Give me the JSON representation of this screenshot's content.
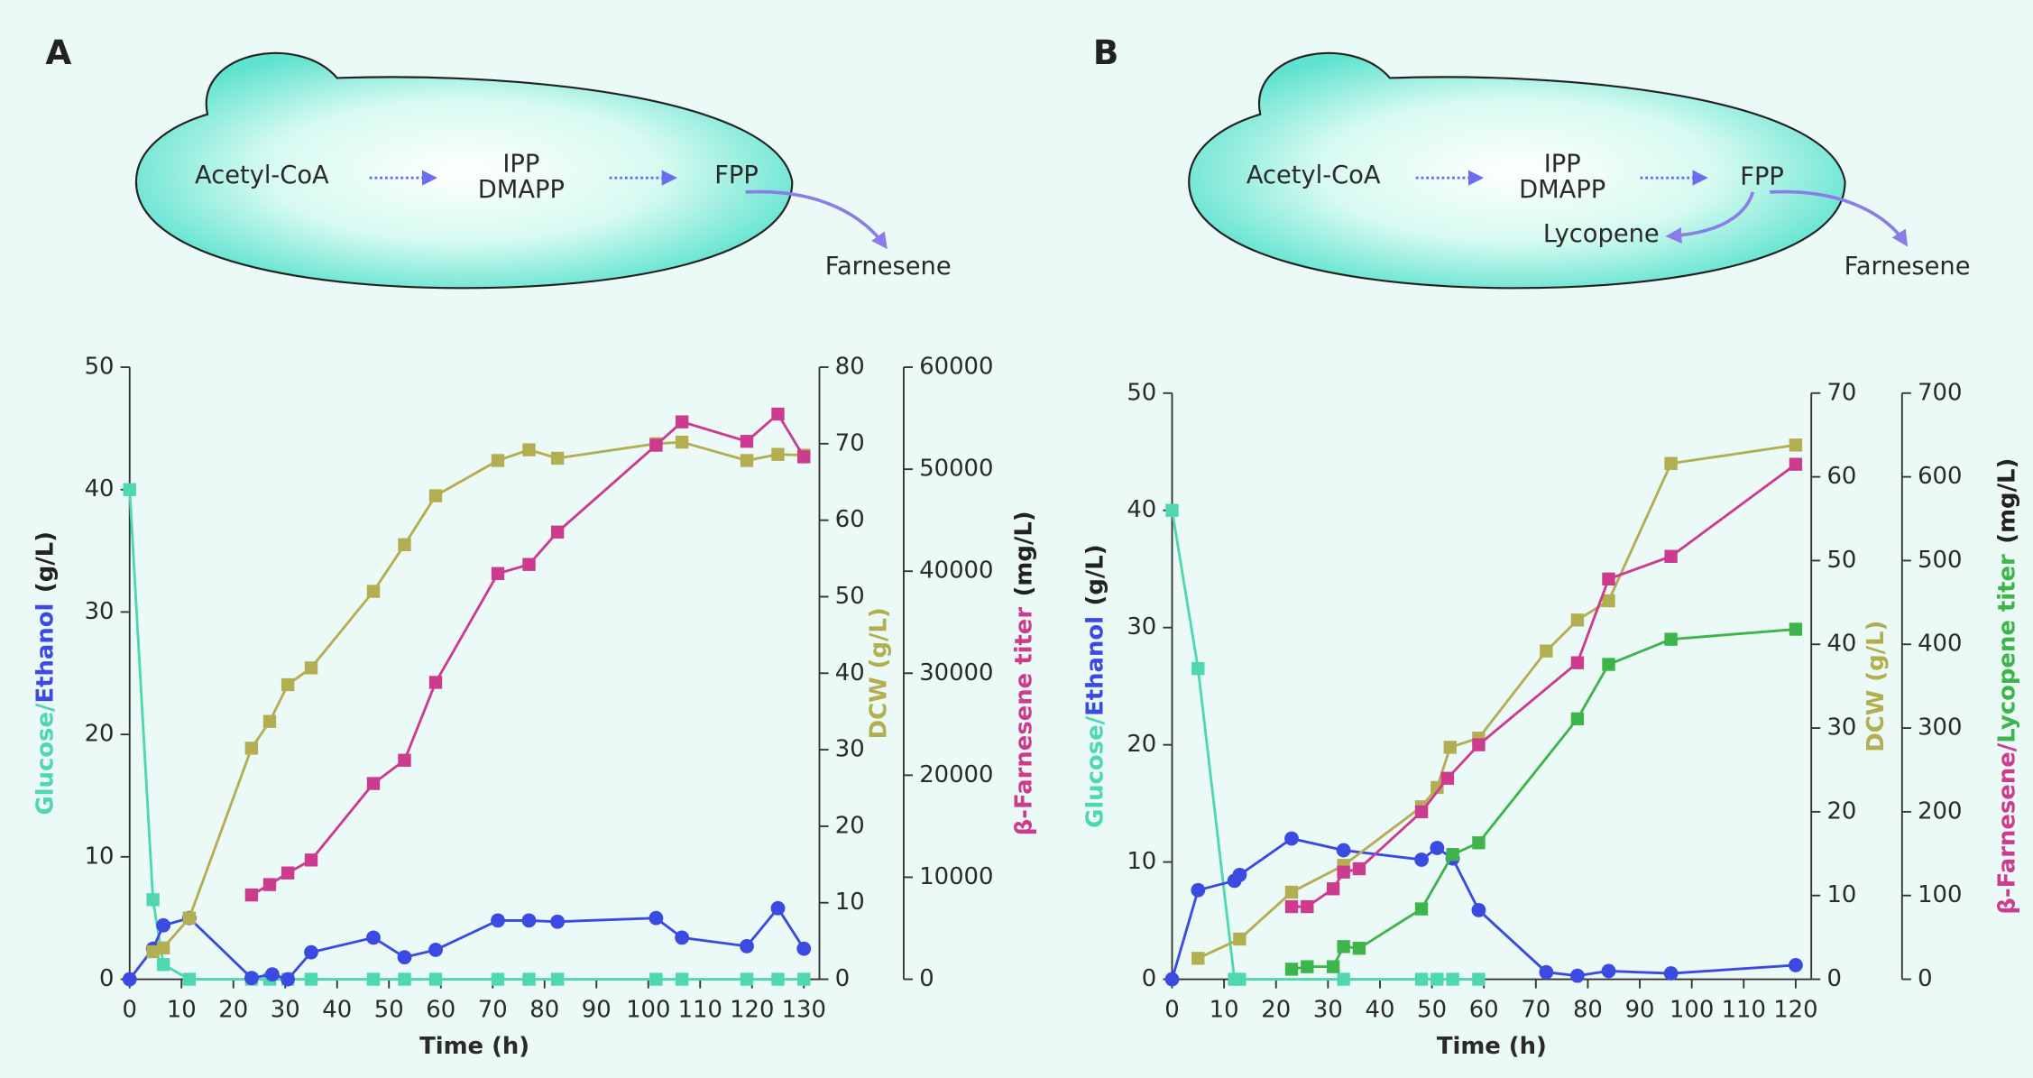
{
  "diagrams": [
    {
      "label": "A",
      "nodes": [
        "Acetyl-CoA",
        "IPP",
        "DMAPP",
        "FPP",
        "Farnesene"
      ]
    },
    {
      "label": "B",
      "nodes": [
        "Acetyl-CoA",
        "IPP",
        "DMAPP",
        "FPP",
        "Farnesene",
        "Lycopene"
      ]
    }
  ],
  "chart_data": [
    {
      "type": "line",
      "xlabel": "Time (h)",
      "ylabel": [
        {
          "text": "Glucose",
          "color": "#4fd8b0"
        },
        {
          "text": "/",
          "color": "#4fd8b0"
        },
        {
          "text": "Ethanol",
          "color": "#3b4ae0"
        },
        {
          "text": "(g/L)",
          "color": "#222222"
        }
      ],
      "y2label": [
        {
          "text": "DCW (g/L)",
          "color": "#b3ae52"
        }
      ],
      "y3label": [
        {
          "text": "β-Farnesene titer",
          "color": "#cc3b8e"
        },
        {
          "text": "(mg/L)",
          "color": "#222222"
        }
      ],
      "xlim": [
        0,
        133
      ],
      "xticks": [
        0,
        10,
        20,
        30,
        40,
        50,
        60,
        70,
        80,
        90,
        100,
        110,
        120,
        130
      ],
      "ylim": [
        0,
        50
      ],
      "yticks": [
        0,
        10,
        20,
        30,
        40,
        50
      ],
      "y2lim": [
        0,
        80
      ],
      "y2ticks": [
        0,
        10,
        20,
        30,
        40,
        50,
        60,
        70,
        80
      ],
      "y3lim": [
        0,
        60000
      ],
      "y3ticks": [
        0,
        10000,
        20000,
        30000,
        40000,
        50000,
        60000
      ],
      "series": [
        {
          "name": "Glucose",
          "color": "#4fd8b0",
          "marker": "square",
          "axis": "y",
          "x": [
            0,
            4.5,
            6.5,
            11.5,
            23.5,
            27,
            30.5,
            35,
            47,
            53,
            59,
            71,
            77,
            82.5,
            101.5,
            106.5,
            119,
            125,
            130
          ],
          "values": [
            40,
            6.5,
            1.2,
            0,
            0,
            0,
            0,
            0,
            0,
            0,
            0,
            0,
            0,
            0,
            0,
            0,
            0,
            0,
            0
          ]
        },
        {
          "name": "Ethanol",
          "color": "#3b4ae0",
          "marker": "circle",
          "axis": "y",
          "x": [
            0,
            4.5,
            6.5,
            11.5,
            23.5,
            27.5,
            30.5,
            35,
            47,
            53,
            59,
            71,
            77,
            82.5,
            101.5,
            106.5,
            119,
            125,
            130
          ],
          "values": [
            0,
            2.5,
            4.4,
            5.0,
            0.1,
            0.4,
            0,
            2.2,
            3.4,
            1.8,
            2.4,
            4.8,
            4.8,
            4.7,
            5.0,
            3.4,
            2.7,
            5.8,
            2.5
          ]
        },
        {
          "name": "DCW",
          "color": "#b3ae52",
          "marker": "square",
          "axis": "y2",
          "x": [
            4.5,
            6.5,
            11.5,
            23.5,
            27,
            30.5,
            35,
            47,
            53,
            59,
            71,
            77,
            82.5,
            101.5,
            106.5,
            119,
            125,
            130
          ],
          "values": [
            3.6,
            4.1,
            8.0,
            30.2,
            33.7,
            38.5,
            40.7,
            50.7,
            56.8,
            63.2,
            67.8,
            69.2,
            68.1,
            70,
            70.2,
            67.8,
            68.6,
            68.5
          ]
        },
        {
          "name": "β-Farnesene",
          "color": "#cc3b8e",
          "marker": "square",
          "axis": "y3",
          "x": [
            23.5,
            27,
            30.5,
            35,
            47,
            53,
            59,
            71,
            77,
            82.5,
            101.5,
            106.5,
            119,
            125,
            130
          ],
          "values": [
            8260,
            9280,
            10420,
            11690,
            19190,
            21470,
            29100,
            39770,
            40660,
            43840,
            52350,
            54640,
            52730,
            55400,
            51210
          ]
        }
      ]
    },
    {
      "type": "line",
      "xlabel": "Time (h)",
      "ylabel": [
        {
          "text": "Glucose",
          "color": "#4fd8b0"
        },
        {
          "text": "/",
          "color": "#4fd8b0"
        },
        {
          "text": "Ethanol",
          "color": "#3b4ae0"
        },
        {
          "text": "(g/L)",
          "color": "#222222"
        }
      ],
      "y2label": [
        {
          "text": "DCW (g/L)",
          "color": "#b3ae52"
        }
      ],
      "y3label": [
        {
          "text": "β-Farnesene",
          "color": "#cc3b8e"
        },
        {
          "text": "/",
          "color": "#cc3b8e"
        },
        {
          "text": "Lycopene titer",
          "color": "#3db54a"
        },
        {
          "text": "(mg/L)",
          "color": "#222222"
        }
      ],
      "xlim": [
        0,
        123
      ],
      "xticks": [
        0,
        10,
        20,
        30,
        40,
        50,
        60,
        70,
        80,
        90,
        100,
        110,
        120
      ],
      "ylim": [
        0,
        50
      ],
      "yticks": [
        0,
        10,
        20,
        30,
        40,
        50
      ],
      "y2lim": [
        0,
        70
      ],
      "y2ticks": [
        0,
        10,
        20,
        30,
        40,
        50,
        60,
        70
      ],
      "y3lim": [
        0,
        700
      ],
      "y3ticks": [
        0,
        100,
        200,
        300,
        400,
        500,
        600,
        700
      ],
      "series": [
        {
          "name": "Glucose",
          "color": "#4fd8b0",
          "marker": "square",
          "axis": "y",
          "x": [
            0,
            5,
            12,
            13,
            33,
            48,
            51,
            54,
            59
          ],
          "values": [
            40,
            26.5,
            0,
            0,
            0,
            0,
            0,
            0,
            0
          ]
        },
        {
          "name": "Ethanol",
          "color": "#3b4ae0",
          "marker": "circle",
          "axis": "y",
          "x": [
            0,
            5,
            12,
            13,
            23,
            33,
            48,
            51,
            54,
            59,
            72,
            78,
            84,
            96,
            120
          ],
          "values": [
            0,
            7.6,
            8.4,
            8.9,
            12,
            11,
            10.2,
            11.2,
            10.3,
            5.9,
            0.6,
            0.3,
            0.7,
            0.5,
            1.2
          ]
        },
        {
          "name": "DCW",
          "color": "#b3ae52",
          "marker": "square",
          "axis": "y2",
          "x": [
            5,
            13,
            23,
            33,
            48,
            51,
            53.5,
            59,
            72,
            78,
            84,
            96,
            120
          ],
          "values": [
            2.5,
            4.8,
            10.4,
            13.6,
            20.6,
            22.9,
            27.7,
            28.8,
            39.2,
            42.9,
            45.2,
            61.6,
            63.8
          ]
        },
        {
          "name": "β-Farnesene",
          "color": "#cc3b8e",
          "marker": "square",
          "axis": "y3",
          "x": [
            23,
            26,
            31,
            33,
            36,
            48,
            53,
            59,
            78,
            84,
            96,
            120
          ],
          "values": [
            86.7,
            86.7,
            108,
            128,
            132,
            200,
            240,
            280,
            378,
            478,
            505,
            615
          ]
        },
        {
          "name": "Lycopene",
          "color": "#3db54a",
          "marker": "square",
          "axis": "y3",
          "x": [
            23,
            26,
            31,
            33,
            36,
            48,
            54,
            59,
            78,
            84,
            96,
            120
          ],
          "values": [
            12,
            15,
            15,
            39,
            37,
            84,
            149,
            163,
            311,
            376,
            406,
            418
          ]
        }
      ]
    }
  ]
}
